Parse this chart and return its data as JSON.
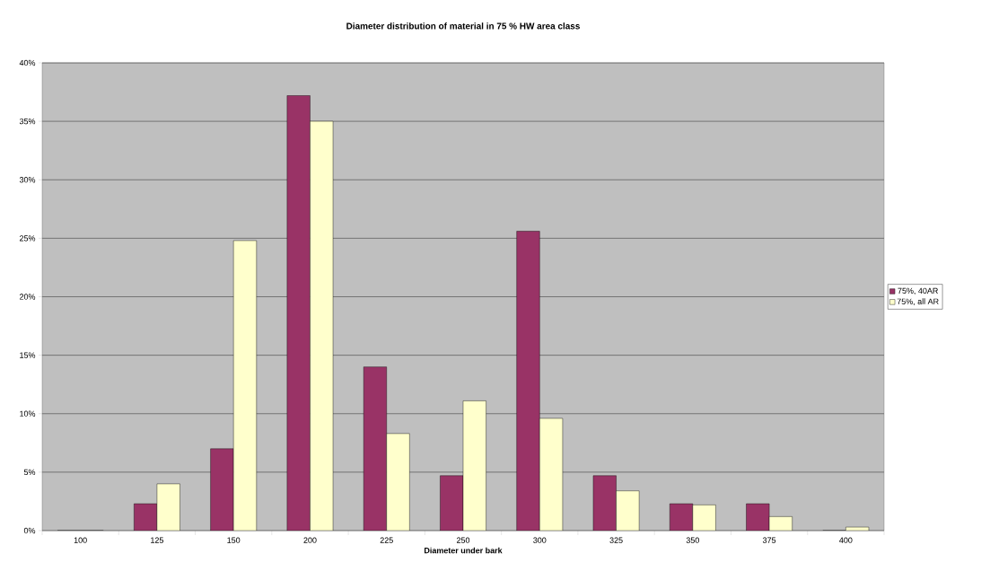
{
  "chart_data": {
    "type": "bar",
    "title": "Diameter distribution of material in 75 % HW area class",
    "xlabel": "Diameter under bark",
    "categories": [
      "100",
      "125",
      "150",
      "200",
      "225",
      "250",
      "300",
      "325",
      "350",
      "375",
      "400"
    ],
    "series": [
      {
        "name": "75%, 40AR",
        "color": "#993366",
        "values": [
          0,
          2.3,
          7.0,
          37.2,
          14.0,
          4.7,
          25.6,
          4.7,
          2.3,
          2.3,
          0
        ]
      },
      {
        "name": "75%, all AR",
        "color": "#ffffcc",
        "values": [
          0,
          4.0,
          24.8,
          35.0,
          8.3,
          11.1,
          9.6,
          3.4,
          2.2,
          1.2,
          0.3
        ]
      }
    ],
    "ylim": [
      0,
      40
    ],
    "yticks": [
      {
        "value": 0,
        "label": "0%"
      },
      {
        "value": 5,
        "label": "5%"
      },
      {
        "value": 10,
        "label": "10%"
      },
      {
        "value": 15,
        "label": "15%"
      },
      {
        "value": 20,
        "label": "20%"
      },
      {
        "value": 25,
        "label": "25%"
      },
      {
        "value": 30,
        "label": "30%"
      },
      {
        "value": 35,
        "label": "35%"
      },
      {
        "value": 40,
        "label": "40%"
      }
    ],
    "grid": "y",
    "legend": "right"
  }
}
